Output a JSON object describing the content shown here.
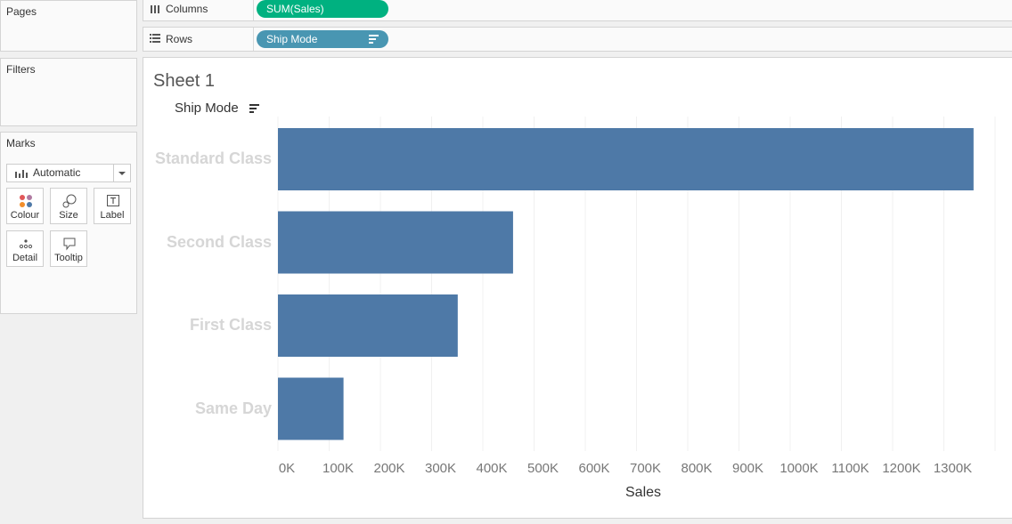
{
  "panels": {
    "pages": {
      "title": "Pages"
    },
    "filters": {
      "title": "Filters"
    },
    "marks": {
      "title": "Marks",
      "mark_type": "Automatic",
      "buttons": [
        {
          "label": "Colour",
          "icon": "colour-icon"
        },
        {
          "label": "Size",
          "icon": "size-icon"
        },
        {
          "label": "Label",
          "icon": "label-icon"
        },
        {
          "label": "Detail",
          "icon": "detail-icon"
        },
        {
          "label": "Tooltip",
          "icon": "tooltip-icon"
        }
      ]
    }
  },
  "shelves": {
    "columns": {
      "label": "Columns",
      "pill": "SUM(Sales)",
      "pill_color": "#00b180"
    },
    "rows": {
      "label": "Rows",
      "pill": "Ship Mode",
      "pill_color": "#4996b2"
    }
  },
  "sheet": {
    "title": "Sheet 1",
    "row_header": "Ship Mode"
  },
  "chart_data": {
    "type": "bar",
    "orientation": "horizontal",
    "categories": [
      "Standard Class",
      "Second Class",
      "First Class",
      "Same Day"
    ],
    "values": [
      1358000,
      459000,
      351000,
      128000
    ],
    "xlabel": "Sales",
    "xlim": [
      0,
      1400000
    ],
    "xticks": [
      0,
      100000,
      200000,
      300000,
      400000,
      500000,
      600000,
      700000,
      800000,
      900000,
      1000000,
      1100000,
      1200000,
      1300000
    ],
    "xtick_labels": [
      "0K",
      "100K",
      "200K",
      "300K",
      "400K",
      "500K",
      "600K",
      "700K",
      "800K",
      "900K",
      "1000K",
      "1100K",
      "1200K",
      "1300K"
    ],
    "grid": true,
    "bar_color": "#4e79a7"
  }
}
